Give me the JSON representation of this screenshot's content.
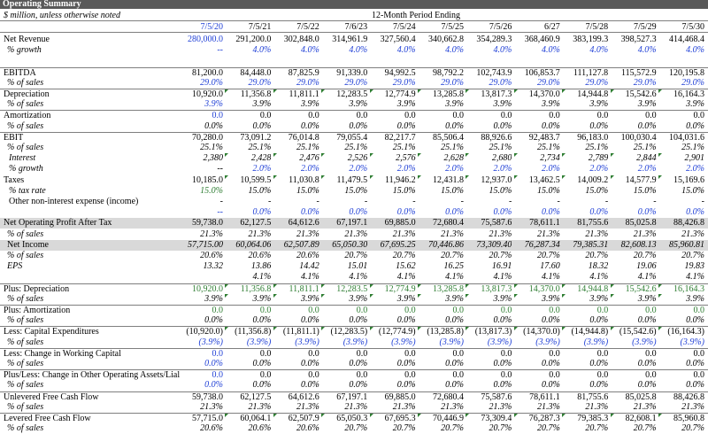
{
  "title": "Operating Summary",
  "note": "$ million, unless otherwise noted",
  "period_label": "12-Month Period Ending",
  "dates": [
    "7/5/20",
    "7/5/21",
    "7/5/22",
    "7/6/23",
    "7/5/24",
    "7/5/25",
    "7/5/26",
    "6/27",
    "7/5/28",
    "7/5/29",
    "7/5/30"
  ],
  "rows": [
    {
      "label": "Net Revenue",
      "indent": 0,
      "values": [
        "280,000.0",
        "291,200.0",
        "302,848.0",
        "314,961.9",
        "327,560.4",
        "340,662.8",
        "354,289.3",
        "368,460.9",
        "383,199.3",
        "398,527.3",
        "414,468.4"
      ],
      "color": [
        "blue",
        "black"
      ]
    },
    {
      "label": "% growth",
      "indent": 1,
      "italic": true,
      "values": [
        "--",
        "4.0%",
        "4.0%",
        "4.0%",
        "4.0%",
        "4.0%",
        "4.0%",
        "4.0%",
        "4.0%",
        "4.0%",
        "4.0%"
      ],
      "color": [
        "blue",
        "blue"
      ]
    },
    {
      "gap": true
    },
    {
      "label": "EBITDA",
      "indent": 0,
      "topline": true,
      "values": [
        "81,200.0",
        "84,448.0",
        "87,825.9",
        "91,339.0",
        "94,992.5",
        "98,792.2",
        "102,743.9",
        "106,853.7",
        "111,127.8",
        "115,572.9",
        "120,195.8"
      ],
      "color": [
        "black",
        "black"
      ]
    },
    {
      "label": "% of sales",
      "indent": 1,
      "italic": true,
      "values": [
        "29.0%",
        "29.0%",
        "29.0%",
        "29.0%",
        "29.0%",
        "29.0%",
        "29.0%",
        "29.0%",
        "29.0%",
        "29.0%",
        "29.0%"
      ],
      "color": [
        "blue",
        "blue"
      ]
    },
    {
      "label": "Depreciation",
      "indent": 0,
      "topline": true,
      "values": [
        "10,920.0",
        "11,356.8",
        "11,811.1",
        "12,283.5",
        "12,774.9",
        "13,285.8",
        "13,817.3",
        "14,370.0",
        "14,944.8",
        "15,542.6",
        "16,164.3"
      ],
      "color": [
        "black",
        "black"
      ],
      "flags": true
    },
    {
      "label": "% of sales",
      "indent": 1,
      "italic": true,
      "values": [
        "3.9%",
        "3.9%",
        "3.9%",
        "3.9%",
        "3.9%",
        "3.9%",
        "3.9%",
        "3.9%",
        "3.9%",
        "3.9%",
        "3.9%"
      ],
      "color": [
        "blue",
        "black"
      ]
    },
    {
      "label": "Amortization",
      "indent": 0,
      "topline": true,
      "values": [
        "0.0",
        "0.0",
        "0.0",
        "0.0",
        "0.0",
        "0.0",
        "0.0",
        "0.0",
        "0.0",
        "0.0",
        "0.0"
      ],
      "color": [
        "blue",
        "black"
      ]
    },
    {
      "label": "% of sales",
      "indent": 1,
      "italic": true,
      "values": [
        "0.0%",
        "0.0%",
        "0.0%",
        "0.0%",
        "0.0%",
        "0.0%",
        "0.0%",
        "0.0%",
        "0.0%",
        "0.0%",
        "0.0%"
      ],
      "color": [
        "black",
        "black"
      ]
    },
    {
      "label": "EBIT",
      "indent": 0,
      "topline": true,
      "values": [
        "70,280.0",
        "73,091.2",
        "76,014.8",
        "79,055.4",
        "82,217.7",
        "85,506.4",
        "88,926.6",
        "92,483.7",
        "96,183.0",
        "100,030.4",
        "104,031.6"
      ],
      "color": [
        "black",
        "black"
      ]
    },
    {
      "label": "% of sales",
      "indent": 1,
      "italic": true,
      "values": [
        "25.1%",
        "25.1%",
        "25.1%",
        "25.1%",
        "25.1%",
        "25.1%",
        "25.1%",
        "25.1%",
        "25.1%",
        "25.1%",
        "25.1%"
      ],
      "color": [
        "black",
        "black"
      ]
    },
    {
      "label": "Interest",
      "indent": 2,
      "italic": true,
      "values": [
        "2,380",
        "2,428",
        "2,476",
        "2,526",
        "2,576",
        "2,628",
        "2,680",
        "2,734",
        "2,789",
        "2,844",
        "2,901"
      ],
      "color": [
        "black",
        "black"
      ],
      "flags": true
    },
    {
      "label": "% growth",
      "indent": 2,
      "italic": true,
      "values": [
        "--",
        "2.0%",
        "2.0%",
        "2.0%",
        "2.0%",
        "2.0%",
        "2.0%",
        "2.0%",
        "2.0%",
        "2.0%",
        "2.0%"
      ],
      "color": [
        "black",
        "blue"
      ]
    },
    {
      "label": "Taxes",
      "indent": 0,
      "values": [
        "10,185.0",
        "10,599.5",
        "11,030.8",
        "11,479.5",
        "11,946.2",
        "12,431.8",
        "12,937.0",
        "13,462.5",
        "14,009.2",
        "14,577.9",
        "15,169.6"
      ],
      "color": [
        "black",
        "black"
      ],
      "flags": true
    },
    {
      "label": "% tax rate",
      "indent": 2,
      "italic": true,
      "values": [
        "15.0%",
        "15.0%",
        "15.0%",
        "15.0%",
        "15.0%",
        "15.0%",
        "15.0%",
        "15.0%",
        "15.0%",
        "15.0%",
        "15.0%"
      ],
      "color": [
        "green",
        "black"
      ]
    },
    {
      "label": "Other non-interest expense (income)",
      "indent": 2,
      "values": [
        "-",
        "-",
        "-",
        "-",
        "-",
        "-",
        "-",
        "-",
        "-",
        "-",
        "-"
      ],
      "color": [
        "black",
        "black"
      ]
    },
    {
      "label": "",
      "indent": 2,
      "italic": true,
      "values": [
        "--",
        "0.0%",
        "0.0%",
        "0.0%",
        "0.0%",
        "0.0%",
        "0.0%",
        "0.0%",
        "0.0%",
        "0.0%",
        "0.0%"
      ],
      "color": [
        "blue",
        "blue"
      ]
    },
    {
      "label": "Net Operating Profit After Tax",
      "indent": 0,
      "shaded": true,
      "values": [
        "59,738.0",
        "62,127.5",
        "64,612.6",
        "67,197.1",
        "69,885.0",
        "72,680.4",
        "75,587.6",
        "78,611.1",
        "81,755.6",
        "85,025.8",
        "88,426.8"
      ],
      "color": [
        "black",
        "black"
      ]
    },
    {
      "label": "% of sales",
      "indent": 1,
      "italic": true,
      "values": [
        "21.3%",
        "21.3%",
        "21.3%",
        "21.3%",
        "21.3%",
        "21.3%",
        "21.3%",
        "21.3%",
        "21.3%",
        "21.3%",
        "21.3%"
      ],
      "color": [
        "black",
        "black"
      ]
    },
    {
      "label": "Net Income",
      "indent": 1,
      "shaded": true,
      "italicValues": true,
      "values": [
        "57,715.00",
        "60,064.06",
        "62,507.89",
        "65,050.30",
        "67,695.25",
        "70,446.86",
        "73,309.40",
        "76,287.34",
        "79,385.31",
        "82,608.13",
        "85,960.81"
      ],
      "color": [
        "black",
        "black"
      ]
    },
    {
      "label": "% of sales",
      "indent": 1,
      "italic": true,
      "values": [
        "20.6%",
        "20.6%",
        "20.6%",
        "20.7%",
        "20.7%",
        "20.7%",
        "20.7%",
        "20.7%",
        "20.7%",
        "20.7%",
        "20.7%"
      ],
      "color": [
        "black",
        "black"
      ]
    },
    {
      "label": "EPS",
      "indent": 1,
      "italic": true,
      "values": [
        "13.32",
        "13.86",
        "14.42",
        "15.01",
        "15.62",
        "16.25",
        "16.91",
        "17.60",
        "18.32",
        "19.06",
        "19.83"
      ],
      "color": [
        "black",
        "black"
      ]
    },
    {
      "label": "",
      "indent": 1,
      "italic": true,
      "values": [
        "",
        "4.1%",
        "4.1%",
        "4.1%",
        "4.1%",
        "4.1%",
        "4.1%",
        "4.1%",
        "4.1%",
        "4.1%",
        "4.1%"
      ],
      "color": [
        "black",
        "black"
      ]
    },
    {
      "label": "Plus: Depreciation",
      "indent": 0,
      "topline": true,
      "values": [
        "10,920.0",
        "11,356.8",
        "11,811.1",
        "12,283.5",
        "12,774.9",
        "13,285.8",
        "13,817.3",
        "14,370.0",
        "14,944.8",
        "15,542.6",
        "16,164.3"
      ],
      "color": [
        "green",
        "green"
      ],
      "flags": true
    },
    {
      "label": "% of sales",
      "indent": 1,
      "italic": true,
      "values": [
        "3.9%",
        "3.9%",
        "3.9%",
        "3.9%",
        "3.9%",
        "3.9%",
        "3.9%",
        "3.9%",
        "3.9%",
        "3.9%",
        "3.9%"
      ],
      "color": [
        "black",
        "black"
      ],
      "flags": true
    },
    {
      "label": "Plus: Amortization",
      "indent": 0,
      "topline": true,
      "values": [
        "0.0",
        "0.0",
        "0.0",
        "0.0",
        "0.0",
        "0.0",
        "0.0",
        "0.0",
        "0.0",
        "0.0",
        "0.0"
      ],
      "color": [
        "green",
        "green"
      ]
    },
    {
      "label": "% of sales",
      "indent": 1,
      "italic": true,
      "values": [
        "0.0%",
        "0.0%",
        "0.0%",
        "0.0%",
        "0.0%",
        "0.0%",
        "0.0%",
        "0.0%",
        "0.0%",
        "0.0%",
        "0.0%"
      ],
      "color": [
        "black",
        "black"
      ]
    },
    {
      "label": "Less: Capital Expenditures",
      "indent": 0,
      "topline": true,
      "values": [
        "(10,920.0)",
        "(11,356.8)",
        "(11,811.1)",
        "(12,283.5)",
        "(12,774.9)",
        "(13,285.8)",
        "(13,817.3)",
        "(14,370.0)",
        "(14,944.8)",
        "(15,542.6)",
        "(16,164.3)"
      ],
      "color": [
        "black",
        "black"
      ],
      "flags": true
    },
    {
      "label": "% of sales",
      "indent": 1,
      "italic": true,
      "values": [
        "(3.9%)",
        "(3.9%)",
        "(3.9%)",
        "(3.9%)",
        "(3.9%)",
        "(3.9%)",
        "(3.9%)",
        "(3.9%)",
        "(3.9%)",
        "(3.9%)",
        "(3.9%)"
      ],
      "color": [
        "blue",
        "blue"
      ]
    },
    {
      "label": "Less: Change in Working Capital",
      "indent": 0,
      "topline": true,
      "values": [
        "0.0",
        "0.0",
        "0.0",
        "0.0",
        "0.0",
        "0.0",
        "0.0",
        "0.0",
        "0.0",
        "0.0",
        "0.0"
      ],
      "color": [
        "blue",
        "black"
      ]
    },
    {
      "label": "% of sales",
      "indent": 1,
      "italic": true,
      "values": [
        "0.0%",
        "0.0%",
        "0.0%",
        "0.0%",
        "0.0%",
        "0.0%",
        "0.0%",
        "0.0%",
        "0.0%",
        "0.0%",
        "0.0%"
      ],
      "color": [
        "blue",
        "black"
      ]
    },
    {
      "label": "Plus/Less: Change in Other Operating Assets/Lial",
      "indent": 0,
      "topline": true,
      "values": [
        "0.0",
        "0.0",
        "0.0",
        "0.0",
        "0.0",
        "0.0",
        "0.0",
        "0.0",
        "0.0",
        "0.0",
        "0.0"
      ],
      "color": [
        "blue",
        "black"
      ]
    },
    {
      "label": "% of sales",
      "indent": 1,
      "italic": true,
      "values": [
        "0.0%",
        "0.0%",
        "0.0%",
        "0.0%",
        "0.0%",
        "0.0%",
        "0.0%",
        "0.0%",
        "0.0%",
        "0.0%",
        "0.0%"
      ],
      "color": [
        "blue",
        "black"
      ]
    },
    {
      "label": "Unlevered Free Cash Flow",
      "indent": 0,
      "topline": true,
      "values": [
        "59,738.0",
        "62,127.5",
        "64,612.6",
        "67,197.1",
        "69,885.0",
        "72,680.4",
        "75,587.6",
        "78,611.1",
        "81,755.6",
        "85,025.8",
        "88,426.8"
      ],
      "color": [
        "black",
        "black"
      ]
    },
    {
      "label": "% of sales",
      "indent": 1,
      "italic": true,
      "values": [
        "21.3%",
        "21.3%",
        "21.3%",
        "21.3%",
        "21.3%",
        "21.3%",
        "21.3%",
        "21.3%",
        "21.3%",
        "21.3%",
        "21.3%"
      ],
      "color": [
        "black",
        "black"
      ]
    },
    {
      "label": "Levered Free Cash Flow",
      "indent": 0,
      "topline": true,
      "values": [
        "57,715.0",
        "60,064.1",
        "62,507.9",
        "65,050.3",
        "67,695.3",
        "70,446.9",
        "73,309.4",
        "76,287.3",
        "79,385.3",
        "82,608.1",
        "85,960.8"
      ],
      "color": [
        "black",
        "black"
      ],
      "flags": true
    },
    {
      "label": "% of sales",
      "indent": 1,
      "italic": true,
      "values": [
        "20.6%",
        "20.6%",
        "20.6%",
        "20.7%",
        "20.7%",
        "20.7%",
        "20.7%",
        "20.7%",
        "20.7%",
        "20.7%",
        "20.7%"
      ],
      "color": [
        "black",
        "black"
      ]
    }
  ]
}
